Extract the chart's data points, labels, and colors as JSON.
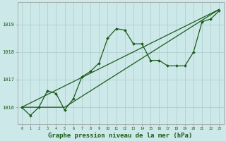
{
  "bg_color": "#cce8e8",
  "grid_color": "#aacccc",
  "line_color": "#1a5c1a",
  "marker_color": "#1a5c1a",
  "xlabel": "Graphe pression niveau de la mer (hPa)",
  "xlabel_fontsize": 6.5,
  "ytick_values": [
    1016,
    1017,
    1018,
    1019
  ],
  "ylim": [
    1015.4,
    1019.8
  ],
  "xlim": [
    -0.5,
    23.5
  ],
  "series1": [
    1016.0,
    1015.7,
    1016.0,
    1016.6,
    1016.5,
    1015.9,
    1016.3,
    1017.1,
    1017.3,
    1017.6,
    1018.5,
    1018.85,
    1018.8,
    1018.3,
    1018.3,
    1017.7,
    1017.7,
    1017.5,
    1017.5,
    1017.5,
    1018.0,
    1019.1,
    1019.2,
    1019.5
  ],
  "line1_x": [
    0,
    23
  ],
  "line1_y": [
    1016.0,
    1019.55
  ],
  "line2_x": [
    0,
    5,
    23
  ],
  "line2_y": [
    1016.0,
    1016.0,
    1019.55
  ]
}
